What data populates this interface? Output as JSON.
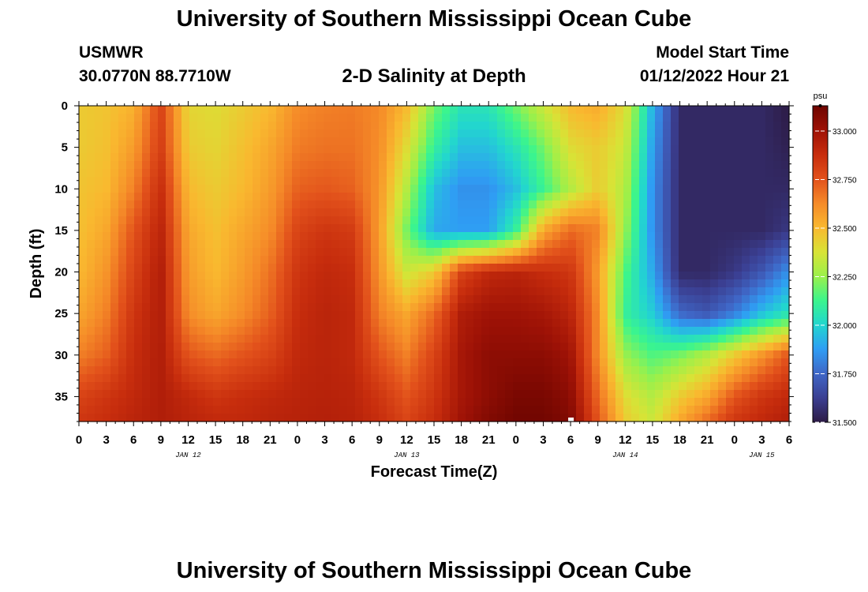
{
  "header": {
    "title": "University of Southern Mississippi Ocean Cube",
    "station": "USMWR",
    "coords": "30.0770N  88.7710W",
    "plot_title": "2-D Salinity at Depth",
    "start_label": "Model Start Time",
    "start_value": "01/12/2022 Hour 21"
  },
  "footer": {
    "title": "University of Southern Mississippi Ocean Cube"
  },
  "chart_data": {
    "type": "heatmap",
    "title": "2-D Salinity at Depth",
    "xlabel": "Forecast Time(Z)",
    "ylabel": "Depth (ft)",
    "x_hours": [
      0,
      3,
      6,
      9,
      12,
      15,
      18,
      21,
      24,
      27,
      30,
      33,
      36,
      39,
      42,
      45,
      48,
      51,
      54,
      57,
      60,
      63,
      66,
      69,
      72,
      75,
      78
    ],
    "x_tick_labels": [
      "0",
      "3",
      "6",
      "9",
      "12",
      "15",
      "18",
      "21",
      "0",
      "3",
      "6",
      "9",
      "12",
      "15",
      "18",
      "21",
      "0",
      "3",
      "6",
      "9",
      "12",
      "15",
      "18",
      "21",
      "0",
      "3",
      "6"
    ],
    "date_labels": [
      {
        "label": "JAN 12",
        "hour": 12
      },
      {
        "label": "JAN 13",
        "hour": 36
      },
      {
        "label": "JAN 14",
        "hour": 60
      },
      {
        "label": "JAN 15",
        "hour": 75
      }
    ],
    "depths_ft": [
      0,
      5,
      10,
      15,
      20,
      25,
      30,
      35,
      38
    ],
    "y_tick_labels": [
      "0",
      "5",
      "10",
      "15",
      "20",
      "25",
      "30",
      "35"
    ],
    "y_ticks": [
      0,
      5,
      10,
      15,
      20,
      25,
      30,
      35
    ],
    "xlim": [
      0,
      78
    ],
    "ylim": [
      0,
      38
    ],
    "salinity_psu": [
      [
        32.45,
        32.47,
        32.52,
        32.8,
        32.42,
        32.4,
        32.45,
        32.5,
        32.62,
        32.65,
        32.66,
        32.63,
        32.5,
        32.2,
        32.05,
        32.05,
        32.2,
        32.35,
        32.5,
        32.54,
        32.4,
        31.92,
        31.55,
        31.55,
        31.55,
        31.55,
        31.5
      ],
      [
        32.45,
        32.48,
        32.58,
        32.82,
        32.45,
        32.42,
        32.48,
        32.55,
        32.66,
        32.68,
        32.68,
        32.62,
        32.4,
        32.1,
        31.95,
        31.95,
        32.05,
        32.2,
        32.4,
        32.45,
        32.35,
        31.88,
        31.55,
        31.55,
        31.55,
        31.55,
        31.52
      ],
      [
        32.47,
        32.5,
        32.65,
        32.88,
        32.5,
        32.45,
        32.5,
        32.58,
        32.72,
        32.74,
        32.72,
        32.6,
        32.3,
        31.95,
        31.85,
        31.85,
        31.95,
        32.12,
        32.3,
        32.45,
        32.3,
        31.85,
        31.55,
        31.55,
        31.55,
        31.55,
        31.55
      ],
      [
        32.48,
        32.55,
        32.75,
        32.92,
        32.55,
        32.48,
        32.55,
        32.62,
        32.8,
        32.85,
        32.83,
        32.58,
        32.2,
        31.9,
        31.88,
        31.88,
        32.1,
        32.55,
        32.7,
        32.65,
        32.25,
        31.85,
        31.55,
        31.55,
        31.55,
        31.55,
        31.6
      ],
      [
        32.5,
        32.6,
        32.8,
        32.95,
        32.58,
        32.5,
        32.58,
        32.68,
        32.85,
        32.9,
        32.88,
        32.6,
        32.35,
        32.45,
        32.8,
        32.9,
        32.92,
        32.88,
        32.85,
        32.58,
        32.15,
        31.9,
        31.55,
        31.55,
        31.6,
        31.7,
        31.85
      ],
      [
        32.55,
        32.65,
        32.85,
        32.95,
        32.62,
        32.55,
        32.62,
        32.72,
        32.88,
        32.92,
        32.9,
        32.65,
        32.55,
        32.7,
        32.95,
        33.0,
        33.0,
        32.98,
        32.92,
        32.62,
        32.1,
        31.98,
        31.75,
        31.7,
        31.8,
        31.95,
        32.05
      ],
      [
        32.65,
        32.72,
        32.88,
        32.95,
        32.75,
        32.7,
        32.75,
        32.8,
        32.9,
        32.92,
        32.9,
        32.75,
        32.65,
        32.8,
        32.98,
        33.05,
        33.05,
        33.05,
        33.0,
        32.62,
        32.25,
        32.15,
        32.2,
        32.3,
        32.45,
        32.6,
        32.75
      ],
      [
        32.8,
        32.85,
        32.9,
        32.95,
        32.9,
        32.85,
        32.88,
        32.9,
        32.92,
        32.93,
        32.92,
        32.85,
        32.75,
        32.85,
        32.98,
        33.05,
        33.1,
        33.1,
        33.05,
        32.7,
        32.4,
        32.3,
        32.45,
        32.55,
        32.75,
        32.85,
        32.9
      ],
      [
        32.85,
        32.88,
        32.92,
        32.95,
        32.92,
        32.9,
        32.9,
        32.92,
        32.93,
        32.94,
        32.93,
        32.88,
        32.8,
        32.88,
        33.0,
        33.08,
        33.12,
        33.12,
        33.08,
        32.75,
        32.45,
        32.35,
        32.55,
        32.7,
        32.85,
        32.9,
        32.95
      ]
    ],
    "colorbar": {
      "label": "psu",
      "min": 31.5,
      "max": 33.13,
      "tick_values": [
        31.5,
        31.75,
        32.0,
        32.25,
        32.5,
        32.75,
        33.0
      ],
      "tick_labels": [
        "31.500",
        "31.750",
        "32.000",
        "32.250",
        "32.500",
        "32.750",
        "33.000"
      ]
    },
    "marker": {
      "hour": 54,
      "depth_ft": 38
    },
    "colors": {
      "palette": [
        "#2d1b45",
        "#3b3f92",
        "#3f67c7",
        "#2f9df4",
        "#22d6cf",
        "#3bf58d",
        "#9cf04a",
        "#d8e336",
        "#f9b82f",
        "#f58a28",
        "#e2511b",
        "#c72d0d",
        "#9e1206",
        "#6e0500"
      ],
      "accent": "#ffffff"
    }
  }
}
